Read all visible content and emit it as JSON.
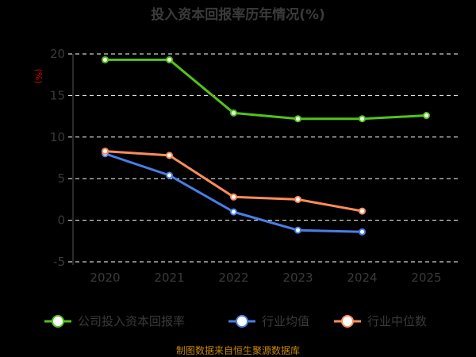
{
  "chart_data": {
    "type": "line",
    "title": "投入资本回报率历年情况(%)",
    "ylabel": "(%)",
    "xlabel": "",
    "categories": [
      "2020",
      "2021",
      "2022",
      "2023",
      "2024",
      "2025"
    ],
    "yticks": [
      "20",
      "15",
      "10",
      "5",
      "0",
      "-5"
    ],
    "ylim": [
      -5,
      20
    ],
    "grid": true,
    "legend_position": "bottom",
    "series": [
      {
        "name": "公司投入资本回报率",
        "color": "#52c41a",
        "values": [
          19.3,
          19.3,
          12.9,
          12.2,
          12.2,
          12.6
        ]
      },
      {
        "name": "行业均值",
        "color": "#4a7ee6",
        "values": [
          8.0,
          5.4,
          1.0,
          -1.2,
          -1.4,
          null
        ]
      },
      {
        "name": "行业中位数",
        "color": "#ff8c5a",
        "values": [
          8.3,
          7.8,
          2.8,
          2.5,
          1.1,
          null
        ]
      }
    ]
  },
  "footer": {
    "source": "制图数据来自恒生聚源数据库"
  }
}
